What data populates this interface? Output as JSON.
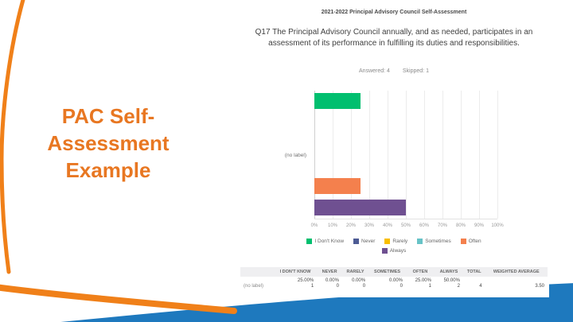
{
  "slide": {
    "title_lines": [
      "PAC Self-",
      "Assessment",
      "Example"
    ]
  },
  "theme": {
    "accent_orange": "#F08019",
    "title_orange": "#E87722",
    "accent_blue": "#1E79BE"
  },
  "report": {
    "header": "2021-2022 Principal Advisory Council Self-Assessment",
    "question": "Q17 The Principal Advisory Council annually, and as needed, participates in an assessment of its performance in fulfilling its duties and responsibilities.",
    "answered": "Answered: 4",
    "skipped": "Skipped: 1"
  },
  "chart_data": {
    "type": "bar",
    "orientation": "horizontal",
    "group_label": "(no label)",
    "categories": [
      "I Don't Know",
      "Never",
      "Rarely",
      "Sometimes",
      "Often",
      "Always"
    ],
    "values": [
      25,
      0,
      0,
      0,
      25,
      50
    ],
    "colors": [
      "#00BF6F",
      "#4D5B94",
      "#F9BE00",
      "#67C3C7",
      "#F4804D",
      "#6F5091"
    ],
    "x_ticks": [
      "0%",
      "10%",
      "20%",
      "30%",
      "40%",
      "50%",
      "60%",
      "70%",
      "80%",
      "90%",
      "100%"
    ],
    "xlim": [
      0,
      100
    ],
    "grid": true,
    "legend_position": "bottom",
    "title": "",
    "xlabel": "",
    "ylabel": ""
  },
  "table": {
    "headers": [
      "",
      "I DON'T KNOW",
      "NEVER",
      "RARELY",
      "SOMETIMES",
      "OFTEN",
      "ALWAYS",
      "TOTAL",
      "WEIGHTED AVERAGE"
    ],
    "row_label": "(no label)",
    "cells": [
      {
        "pct": "25.00%",
        "count": "1"
      },
      {
        "pct": "0.00%",
        "count": "0"
      },
      {
        "pct": "0.00%",
        "count": "0"
      },
      {
        "pct": "0.00%",
        "count": "0"
      },
      {
        "pct": "25.00%",
        "count": "1"
      },
      {
        "pct": "50.00%",
        "count": "2"
      }
    ],
    "total": "4",
    "weighted_average": "3.50"
  }
}
